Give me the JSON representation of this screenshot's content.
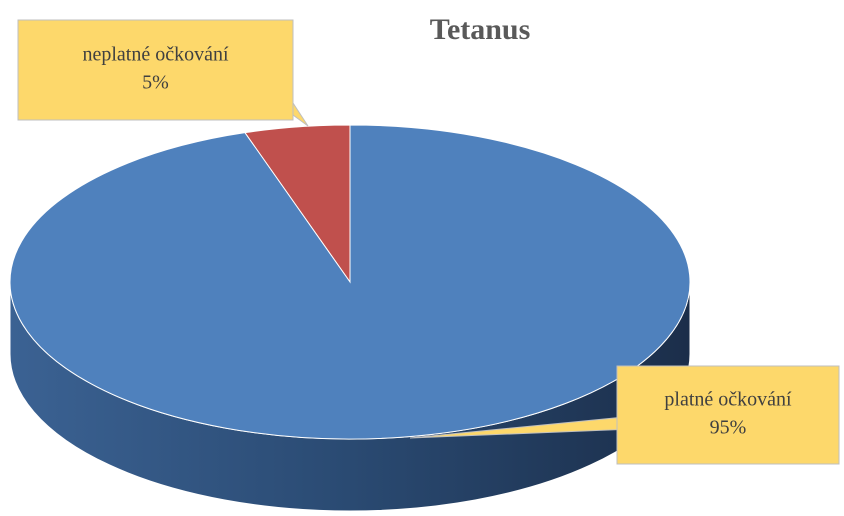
{
  "chart_data": {
    "type": "pie",
    "title": "Tetanus",
    "categories": [
      "neplatné očkování",
      "platné očkování"
    ],
    "values": [
      5,
      95
    ],
    "value_labels": [
      "5%",
      "95%"
    ],
    "colors": [
      "#c0504d",
      "#4f81bd"
    ]
  }
}
